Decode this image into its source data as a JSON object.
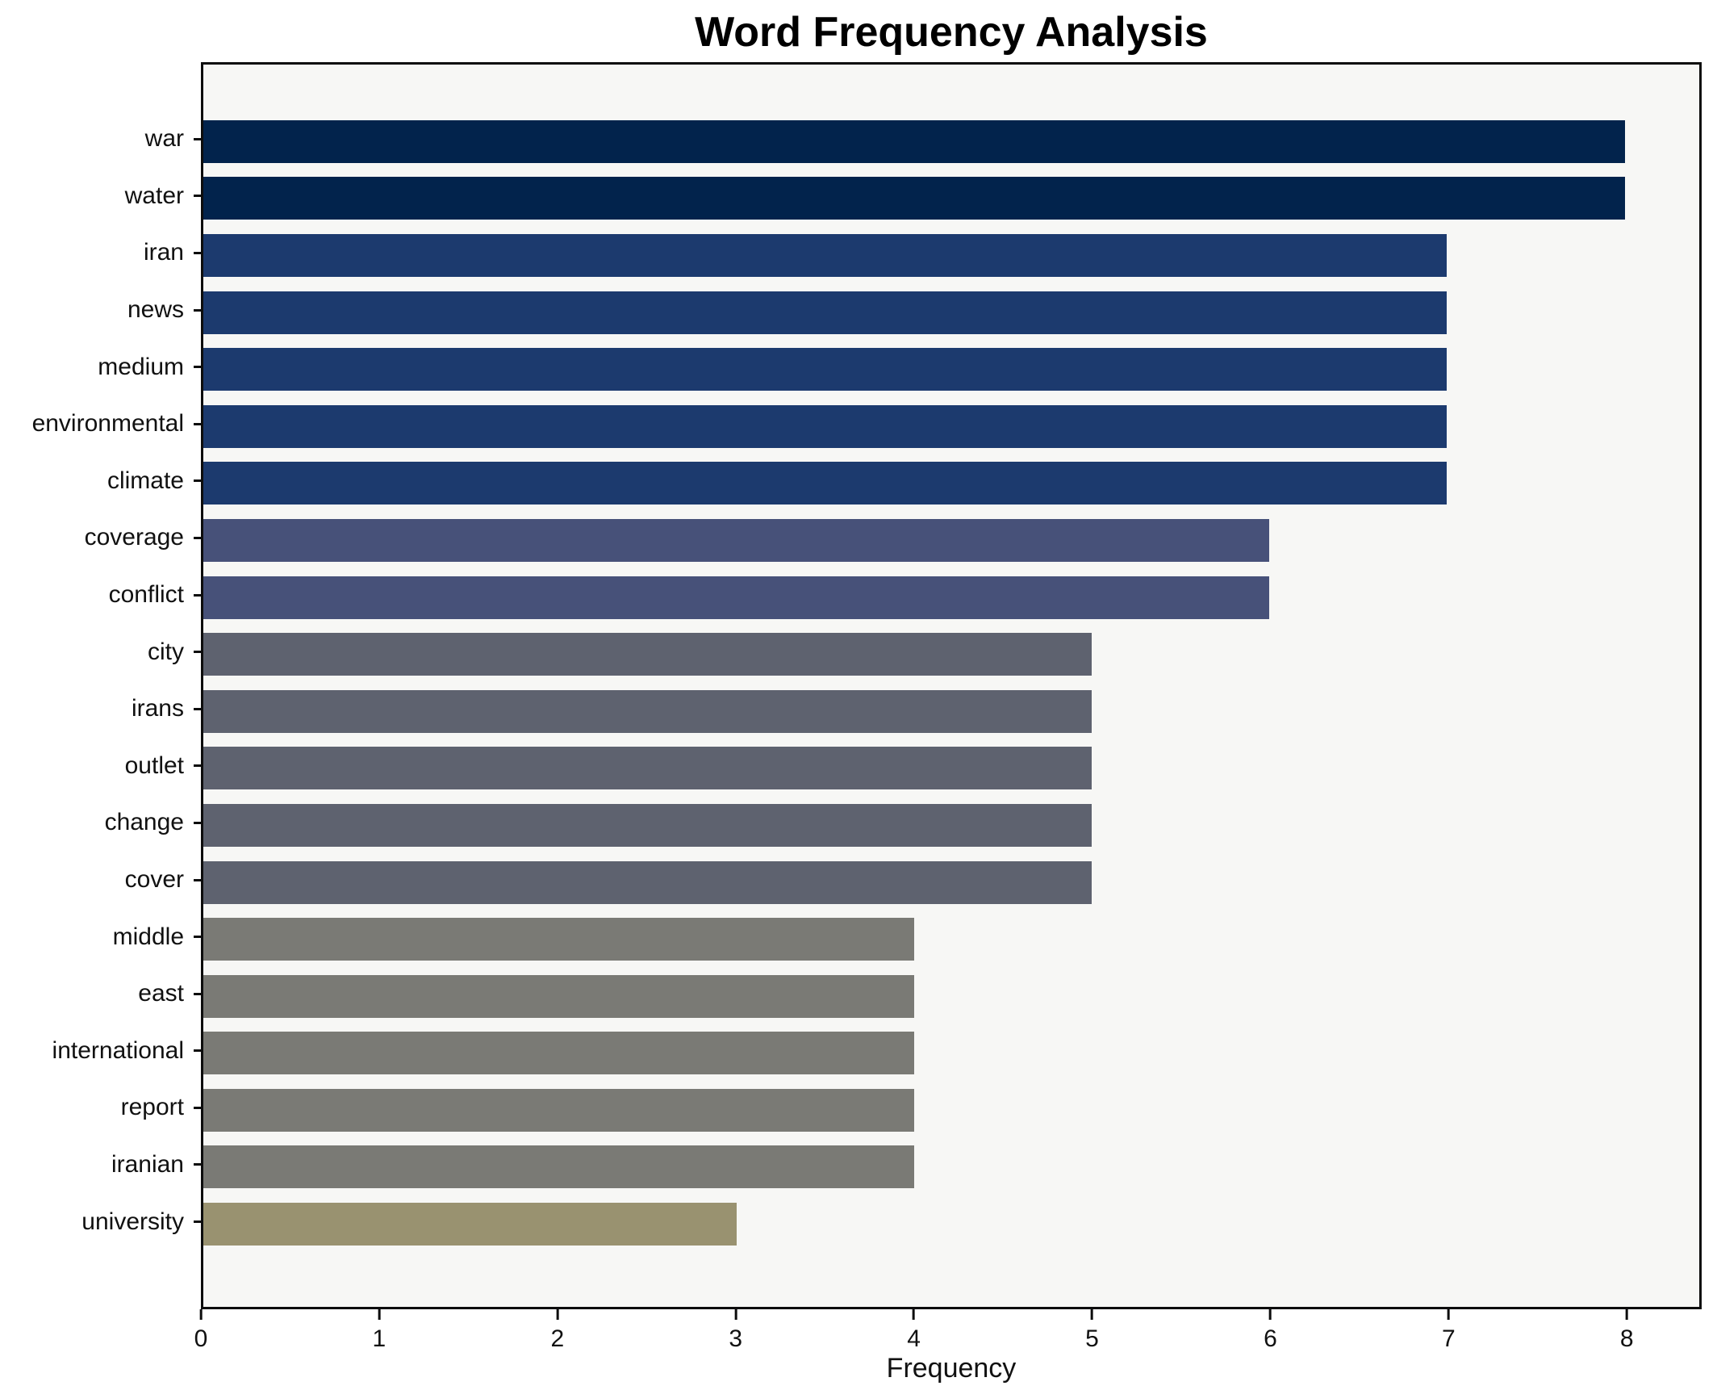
{
  "chart_data": {
    "type": "bar",
    "orientation": "horizontal",
    "title": "Word Frequency Analysis",
    "xlabel": "Frequency",
    "ylabel": "",
    "categories": [
      "war",
      "water",
      "iran",
      "news",
      "medium",
      "environmental",
      "climate",
      "coverage",
      "conflict",
      "city",
      "irans",
      "outlet",
      "change",
      "cover",
      "middle",
      "east",
      "international",
      "report",
      "iranian",
      "university"
    ],
    "values": [
      8,
      8,
      7,
      7,
      7,
      7,
      7,
      6,
      6,
      5,
      5,
      5,
      5,
      5,
      4,
      4,
      4,
      4,
      4,
      3
    ],
    "bar_colors": [
      "#02234c",
      "#02234c",
      "#1c3a6e",
      "#1c3a6e",
      "#1c3a6e",
      "#1c3a6e",
      "#1c3a6e",
      "#475179",
      "#475179",
      "#5e626f",
      "#5e626f",
      "#5e626f",
      "#5e626f",
      "#5e626f",
      "#7a7a75",
      "#7a7a75",
      "#7a7a75",
      "#7a7a75",
      "#7a7a75",
      "#999270"
    ],
    "xticks": [
      0,
      1,
      2,
      3,
      4,
      5,
      6,
      7,
      8
    ],
    "xlim": [
      0,
      8.42
    ],
    "grid": false,
    "legend": null,
    "plot_background": "#f7f7f5",
    "figure_background": "#ffffff",
    "axis_color": "#0d0d0d"
  }
}
